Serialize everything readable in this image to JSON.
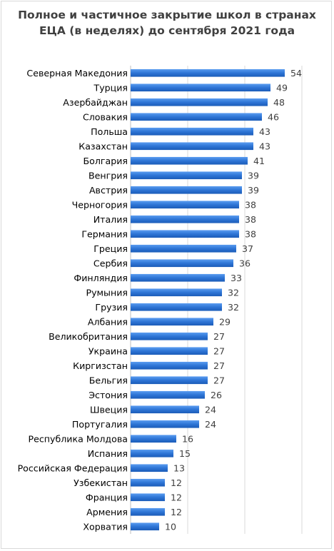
{
  "chart_data": {
    "type": "bar",
    "orientation": "horizontal",
    "title_lines": [
      "Полное и частичное закрытие школ в странах",
      "ЕЦА (в неделях) до сентября 2021 года"
    ],
    "categories": [
      "Северная Македония",
      "Турция",
      "Азербайджан",
      "Словакия",
      "Польша",
      "Казахстан",
      "Болгария",
      "Венгрия",
      "Австрия",
      "Черногория",
      "Италия",
      "Германия",
      "Греция",
      "Сербия",
      "Финляндия",
      "Румыния",
      "Грузия",
      "Албания",
      "Великобритания",
      "Украина",
      "Киргизстан",
      "Бельгия",
      "Эстония",
      "Швеция",
      "Португалия",
      "Республика Молдова",
      "Испания",
      "Российская Федерация",
      "Узбекистан",
      "Франция",
      "Армения",
      "Хорватия"
    ],
    "values": [
      54,
      49,
      48,
      46,
      43,
      43,
      41,
      39,
      39,
      38,
      38,
      38,
      37,
      36,
      33,
      32,
      32,
      29,
      27,
      27,
      27,
      27,
      26,
      24,
      24,
      16,
      15,
      13,
      12,
      12,
      12,
      10
    ],
    "xlim": [
      0,
      60
    ],
    "grid": true,
    "bar_color": "#2e75d6",
    "data_labels": true
  }
}
